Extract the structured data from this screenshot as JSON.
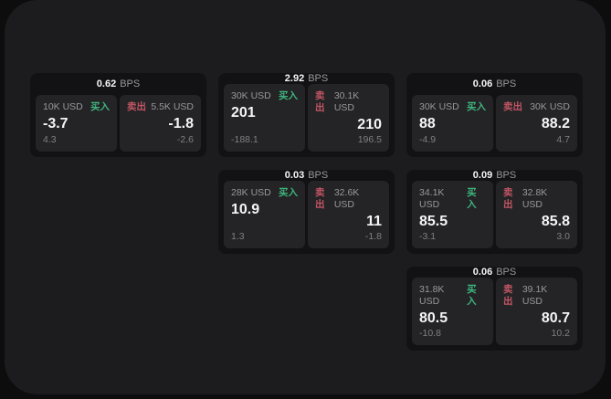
{
  "labels": {
    "bps_unit": "BPS",
    "buy": "买入",
    "sell": "卖出"
  },
  "colors": {
    "buy-green": "#3eb57c",
    "sell-red": "#c25563",
    "panel-bg": "#1c1c1e",
    "card-bg": "#121214",
    "tile-bg": "#242427"
  },
  "cards": [
    {
      "bps": "0.62",
      "buy": {
        "amount": "10K USD",
        "value": "-3.7",
        "sub": "4.3"
      },
      "sell": {
        "amount": "5.5K USD",
        "value": "-1.8",
        "sub": "-2.6"
      }
    },
    {
      "bps": "2.92",
      "buy": {
        "amount": "30K USD",
        "value": "201",
        "sub": "-188.1"
      },
      "sell": {
        "amount": "30.1K USD",
        "value": "210",
        "sub": "196.5"
      }
    },
    {
      "bps": "0.06",
      "buy": {
        "amount": "30K USD",
        "value": "88",
        "sub": "-4.9"
      },
      "sell": {
        "amount": "30K USD",
        "value": "88.2",
        "sub": "4.7"
      }
    },
    {
      "bps": "0.03",
      "buy": {
        "amount": "28K USD",
        "value": "10.9",
        "sub": "1.3"
      },
      "sell": {
        "amount": "32.6K USD",
        "value": "11",
        "sub": "-1.8"
      }
    },
    {
      "bps": "0.09",
      "buy": {
        "amount": "34.1K USD",
        "value": "85.5",
        "sub": "-3.1"
      },
      "sell": {
        "amount": "32.8K USD",
        "value": "85.8",
        "sub": "3.0"
      }
    },
    {
      "bps": "0.06",
      "buy": {
        "amount": "31.8K USD",
        "value": "80.5",
        "sub": "-10.8"
      },
      "sell": {
        "amount": "39.1K USD",
        "value": "80.7",
        "sub": "10.2"
      }
    }
  ]
}
